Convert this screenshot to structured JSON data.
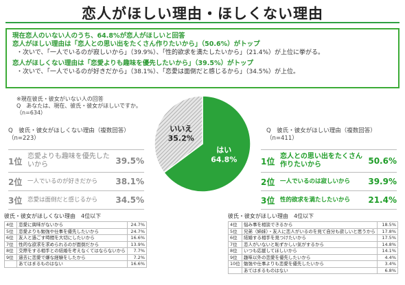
{
  "page": {
    "title": "恋人がほしい理由・ほしくない理由"
  },
  "summary": {
    "line1": "現在恋人のいない人のうち、64.8%が恋人がほしいと回答",
    "line2": "恋人がほしい理由は「恋人との思い出をたくさん作りたいから」（50.6%）がトップ",
    "line3": "・次いで、「一人でいるのが寂しいから」（39.9%）、「性的欲求を満たしたいから」（21.4%）が上位に挙がる。",
    "line4": "恋人がほしくない理由は「恋愛よりも趣味を優先したいから」（39.5%）がトップ",
    "line5": "・次いで、「一人でいるのが好きだから」（38.1%）、「恋愛は面倒だと感じるから」（34.5%）が上位。"
  },
  "pie_note": {
    "l1": "※現在彼氏・彼女がいない人の回答",
    "l2": "Q　あなたは、現在、彼氏・彼女がほしいですか。",
    "l3": "（n=634）"
  },
  "left_panel": {
    "q": "Q　彼氏・彼女がほしくない理由（複数回答）",
    "n": "（n=223）"
  },
  "right_panel": {
    "q": "Q　彼氏・彼女がほしい理由（複数回答）",
    "n": "（n=411）"
  },
  "colors": {
    "green": "#2ba33a",
    "gray": "#c8c8c8",
    "accent": "#3aaa35"
  },
  "chart_data": [
    {
      "type": "pie",
      "slices": [
        {
          "label": "はい",
          "value": 64.8,
          "pct_text": "64.8%"
        },
        {
          "label": "いいえ",
          "value": 35.2,
          "pct_text": "35.2%"
        }
      ]
    },
    {
      "type": "table",
      "name": "ほしくない理由 上位",
      "rows": [
        {
          "rank": "1位",
          "label": "恋愛よりも趣味を優先したいから",
          "value": 39.5,
          "text": "39.5%"
        },
        {
          "rank": "2位",
          "label": "一人でいるのが好きだから",
          "value": 38.1,
          "text": "38.1%"
        },
        {
          "rank": "3位",
          "label": "恋愛は面倒だと感じるから",
          "value": 34.5,
          "text": "34.5%"
        }
      ]
    },
    {
      "type": "table",
      "name": "ほしい理由 上位",
      "rows": [
        {
          "rank": "1位",
          "label": "恋人との思い出をたくさん作りたいから",
          "value": 50.6,
          "text": "50.6%"
        },
        {
          "rank": "2位",
          "label": "一人でいるのは寂しいから",
          "value": 39.9,
          "text": "39.9%"
        },
        {
          "rank": "3位",
          "label": "性的欲求を満たしたいから",
          "value": 21.4,
          "text": "21.4%"
        }
      ]
    },
    {
      "type": "table",
      "name": "彼氏・彼女がほしくない理由　4位以下",
      "rows": [
        {
          "rank": "4位",
          "label": "恋愛に興味がないから",
          "text": "24.7%"
        },
        {
          "rank": "5位",
          "label": "恋愛よりも勉強や仕事を優先したいから",
          "text": "24.7%"
        },
        {
          "rank": "6位",
          "label": "友人と過ごす時間を大切にしたいから",
          "text": "16.6%"
        },
        {
          "rank": "7位",
          "label": "性的な欲求を求められるのが面倒だから",
          "text": "13.9%"
        },
        {
          "rank": "8位",
          "label": "交際をする相手との結婚を考えなくてはならないから",
          "text": "7.7%"
        },
        {
          "rank": "9位",
          "label": "過去に恋愛で嫌な経験をしたから",
          "text": "7.2%"
        },
        {
          "rank": "",
          "label": "あてはまるものはない",
          "text": "16.6%"
        }
      ]
    },
    {
      "type": "table",
      "name": "彼氏・彼女がほしい理由　4位以下",
      "rows": [
        {
          "rank": "4位",
          "label": "悩み事を相談できるから",
          "text": "18.5%"
        },
        {
          "rank": "5位",
          "label": "兄弟（姉妹）・友人に恋人がいるのを見て自分も欲しいと思うから",
          "text": "17.8%"
        },
        {
          "rank": "6位",
          "label": "結婚する相手を見つけたいから",
          "text": "17.5%"
        },
        {
          "rank": "7位",
          "label": "恋人がいないと恥ずかしい気がするから",
          "text": "14.8%"
        },
        {
          "rank": "8位",
          "label": "いつも応援してほしいから",
          "text": "14.1%"
        },
        {
          "rank": "9位",
          "label": "趣味以外の恋愛を優先したいから",
          "text": "4.4%"
        },
        {
          "rank": "10位",
          "label": "勉強や仕事よりも恋愛を優先したいから",
          "text": "3.4%"
        },
        {
          "rank": "",
          "label": "あてはまるものはない",
          "text": "6.8%"
        }
      ]
    }
  ]
}
